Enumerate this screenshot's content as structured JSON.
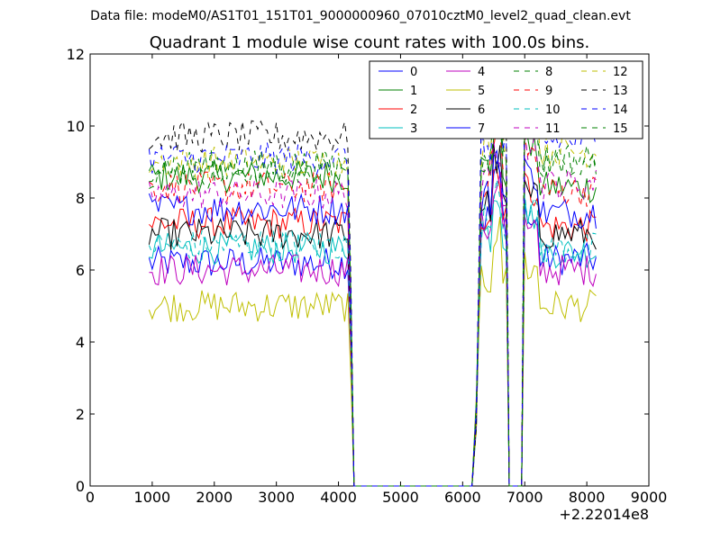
{
  "header": {
    "suptitle": "Data file: modeM0/AS1T01_151T01_9000000960_07010cztM0_level2_quad_clean.evt",
    "title": "Quadrant 1 module wise count rates with 100.0s bins."
  },
  "chart_data": {
    "type": "line",
    "title": "Quadrant 1 module wise count rates with 100.0s bins.",
    "xlabel": "",
    "ylabel": "",
    "x_offset_label": "+2.22014e8",
    "xlim": [
      0,
      9000
    ],
    "ylim": [
      0,
      12
    ],
    "xticks": [
      0,
      1000,
      2000,
      3000,
      4000,
      5000,
      6000,
      7000,
      8000,
      9000
    ],
    "yticks": [
      0,
      2,
      4,
      6,
      8,
      10,
      12
    ],
    "grid": false,
    "legend_position": "top-right",
    "legend_columns": 4,
    "gaps_zero": [
      [
        4250,
        6150
      ],
      [
        6750,
        6950
      ]
    ],
    "series": [
      {
        "name": "0",
        "color": "#0000ff",
        "style": "solid",
        "segments": [
          {
            "x0": 950,
            "x1": 4150,
            "level": 6.2
          },
          {
            "x0": 6300,
            "x1": 6700,
            "level": 7.4
          },
          {
            "x0": 7050,
            "x1": 8150,
            "level": 6.3
          }
        ]
      },
      {
        "name": "1",
        "color": "#008000",
        "style": "solid",
        "segments": [
          {
            "x0": 950,
            "x1": 4150,
            "level": 8.6
          },
          {
            "x0": 6300,
            "x1": 6700,
            "level": 8.8
          },
          {
            "x0": 7050,
            "x1": 8150,
            "level": 8.3
          }
        ]
      },
      {
        "name": "2",
        "color": "#ff0000",
        "style": "solid",
        "segments": [
          {
            "x0": 950,
            "x1": 4150,
            "level": 7.3
          },
          {
            "x0": 6300,
            "x1": 6700,
            "level": 7.6
          },
          {
            "x0": 7050,
            "x1": 8150,
            "level": 7.2
          }
        ]
      },
      {
        "name": "3",
        "color": "#00bfbf",
        "style": "solid",
        "segments": [
          {
            "x0": 950,
            "x1": 4150,
            "level": 6.6
          },
          {
            "x0": 6300,
            "x1": 6700,
            "level": 7.0
          },
          {
            "x0": 7050,
            "x1": 8150,
            "level": 6.5
          }
        ]
      },
      {
        "name": "4",
        "color": "#bf00bf",
        "style": "solid",
        "segments": [
          {
            "x0": 950,
            "x1": 4150,
            "level": 6.0
          },
          {
            "x0": 6300,
            "x1": 6700,
            "level": 7.2
          },
          {
            "x0": 7050,
            "x1": 8150,
            "level": 6.0
          }
        ]
      },
      {
        "name": "5",
        "color": "#bfbf00",
        "style": "solid",
        "segments": [
          {
            "x0": 950,
            "x1": 4150,
            "level": 5.0
          },
          {
            "x0": 6300,
            "x1": 6700,
            "level": 5.8
          },
          {
            "x0": 7050,
            "x1": 8150,
            "level": 5.0
          }
        ]
      },
      {
        "name": "6",
        "color": "#000000",
        "style": "solid",
        "segments": [
          {
            "x0": 950,
            "x1": 4150,
            "level": 7.0
          },
          {
            "x0": 6300,
            "x1": 6700,
            "level": 7.8
          },
          {
            "x0": 7050,
            "x1": 8150,
            "level": 7.0
          }
        ]
      },
      {
        "name": "7",
        "color": "#0000ff",
        "style": "solid",
        "segments": [
          {
            "x0": 950,
            "x1": 4150,
            "level": 7.7
          },
          {
            "x0": 6300,
            "x1": 6700,
            "level": 8.0
          },
          {
            "x0": 7050,
            "x1": 8150,
            "level": 7.6
          }
        ]
      },
      {
        "name": "8",
        "color": "#008000",
        "style": "dashed",
        "segments": [
          {
            "x0": 950,
            "x1": 4150,
            "level": 8.7
          },
          {
            "x0": 6300,
            "x1": 6700,
            "level": 9.0
          },
          {
            "x0": 7050,
            "x1": 8150,
            "level": 9.0
          }
        ]
      },
      {
        "name": "9",
        "color": "#ff0000",
        "style": "dashed",
        "segments": [
          {
            "x0": 950,
            "x1": 4150,
            "level": 8.3
          },
          {
            "x0": 6300,
            "x1": 6700,
            "level": 8.6
          },
          {
            "x0": 7050,
            "x1": 8150,
            "level": 8.2
          }
        ]
      },
      {
        "name": "10",
        "color": "#00bfbf",
        "style": "dashed",
        "segments": [
          {
            "x0": 950,
            "x1": 4150,
            "level": 6.7
          },
          {
            "x0": 6300,
            "x1": 6700,
            "level": 7.3
          },
          {
            "x0": 7050,
            "x1": 8150,
            "level": 6.6
          }
        ]
      },
      {
        "name": "11",
        "color": "#bf00bf",
        "style": "dashed",
        "segments": [
          {
            "x0": 950,
            "x1": 4150,
            "level": 8.1
          },
          {
            "x0": 6300,
            "x1": 6700,
            "level": 8.3
          },
          {
            "x0": 7050,
            "x1": 8150,
            "level": 8.4
          }
        ]
      },
      {
        "name": "12",
        "color": "#bfbf00",
        "style": "dashed",
        "segments": [
          {
            "x0": 950,
            "x1": 4150,
            "level": 9.0
          },
          {
            "x0": 6300,
            "x1": 6700,
            "level": 9.4
          },
          {
            "x0": 7050,
            "x1": 8150,
            "level": 9.3
          }
        ]
      },
      {
        "name": "13",
        "color": "#000000",
        "style": "dashed",
        "segments": [
          {
            "x0": 950,
            "x1": 4150,
            "level": 9.7
          },
          {
            "x0": 6300,
            "x1": 6700,
            "level": 10.0
          },
          {
            "x0": 7050,
            "x1": 8150,
            "level": 10.1
          }
        ]
      },
      {
        "name": "14",
        "color": "#0000ff",
        "style": "dashed",
        "segments": [
          {
            "x0": 950,
            "x1": 4150,
            "level": 9.1
          },
          {
            "x0": 6300,
            "x1": 6700,
            "level": 9.5
          },
          {
            "x0": 7050,
            "x1": 8150,
            "level": 9.6
          }
        ]
      },
      {
        "name": "15",
        "color": "#008000",
        "style": "dashed",
        "segments": [
          {
            "x0": 950,
            "x1": 4150,
            "level": 8.9
          },
          {
            "x0": 6300,
            "x1": 6700,
            "level": 9.2
          },
          {
            "x0": 7050,
            "x1": 8150,
            "level": 9.1
          }
        ]
      }
    ]
  }
}
